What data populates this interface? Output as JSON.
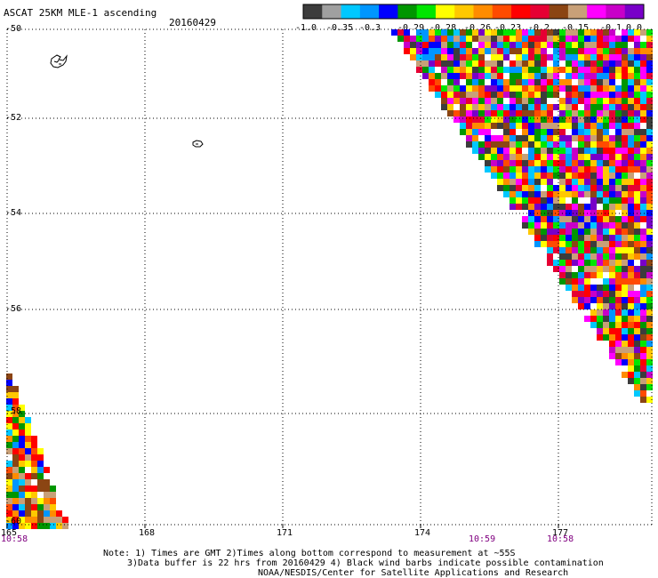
{
  "header": {
    "title": "ASCAT 25KM MLE-1 ascending",
    "date": "20160429"
  },
  "colorbar": {
    "colors": [
      "#3c3c3c",
      "#a0a0a0",
      "#00c8ff",
      "#0096ff",
      "#0000ff",
      "#009600",
      "#00e600",
      "#ffff00",
      "#ffc800",
      "#ff8c00",
      "#ff4b00",
      "#ff0000",
      "#e60033",
      "#8b4513",
      "#c8a078",
      "#ff00ff",
      "#c800c8",
      "#7800c8"
    ],
    "labels": [
      "-1.0",
      "-0.35",
      "-0.3",
      "-0.29",
      "-0.28",
      "-0.26",
      "-0.23",
      "-0.2",
      "-0.15",
      "-0.1",
      "0.0"
    ]
  },
  "map": {
    "lat_labels": [
      "-50",
      "-52",
      "-54",
      "-56",
      "-58",
      "-60"
    ],
    "lon_labels": [
      "165",
      "168",
      "171",
      "174",
      "177"
    ],
    "time_labels": [
      "10:58",
      "10:59",
      "10:58"
    ],
    "swath_colors": [
      "#ff0000",
      "#ff4b00",
      "#ff8c00",
      "#ffc800",
      "#ffff00",
      "#e60033",
      "#8b4513",
      "#c8a078",
      "#ff00ff",
      "#c800c8",
      "#7800c8",
      "#0000ff",
      "#0096ff",
      "#00c8ff",
      "#009600",
      "#00e600",
      "#3c3c3c",
      "#ffffff"
    ]
  },
  "footer": {
    "line1": "Note: 1) Times are GMT 2)Times along bottom correspond to measurement at ~55S",
    "line2": "3)Data buffer is 22 hrs from 20160429 4) Black wind barbs indicate possible contamination",
    "line3": "NOAA/NESDIS/Center for Satellite Applications and Research"
  }
}
